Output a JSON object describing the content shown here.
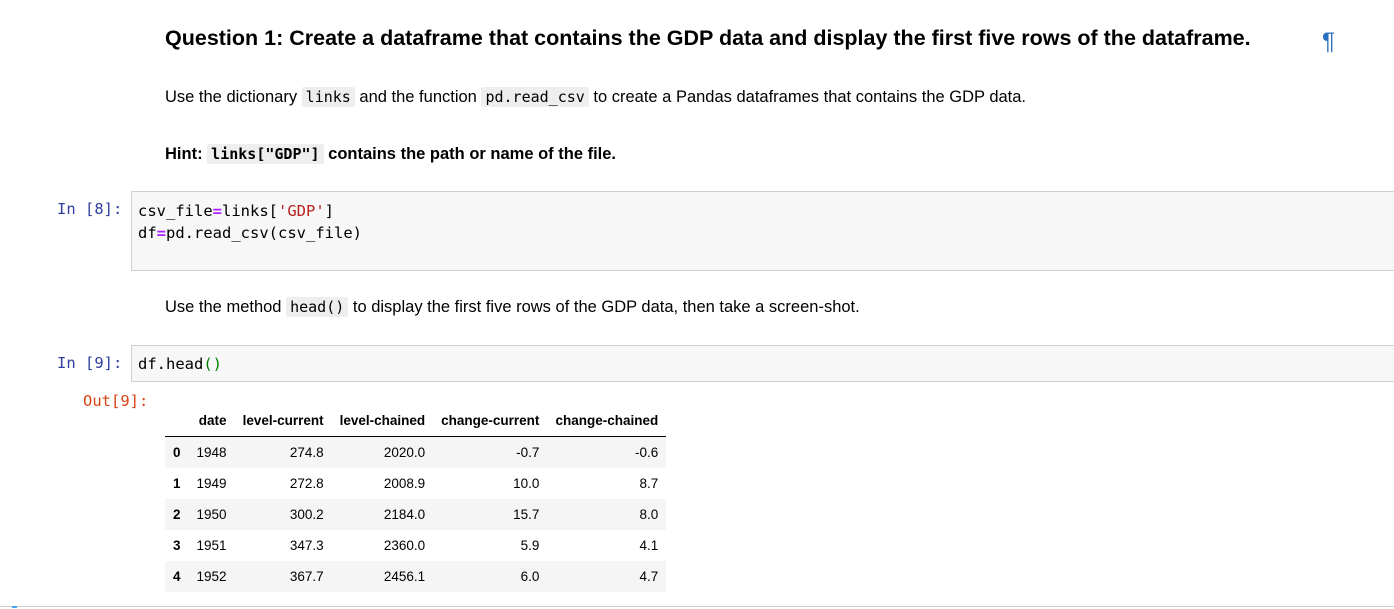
{
  "question": {
    "heading": "Question 1: Create a dataframe that contains the GDP data and display the first five rows of the dataframe.",
    "pilcrow": "¶",
    "instruction": {
      "prefix": "Use the dictionary",
      "code1": "links",
      "middle": "and the function",
      "code2": "pd.read_csv",
      "suffix": "to create a Pandas dataframes that contains the GDP data."
    },
    "hint": {
      "label": "Hint:",
      "code": "links[\"GDP\"]",
      "text": "contains the path or name of the file."
    }
  },
  "cell1": {
    "prompt": "In [8]:",
    "line1": {
      "a": "csv_file",
      "op": "=",
      "b": "links[",
      "str": "'GDP'",
      "c": "]"
    },
    "line2": {
      "a": "df",
      "op": "=",
      "b": "pd.read_csv(csv_file)"
    }
  },
  "instruction2": {
    "prefix": "Use the method",
    "code": "head()",
    "suffix": "to display the first five rows of the GDP data, then take a screen-shot."
  },
  "cell2": {
    "prompt": "In [9]:",
    "code_a": "df.head",
    "code_paren": "()",
    "out_prompt": "Out[9]:"
  },
  "dataframe": {
    "columns": [
      "",
      "date",
      "level-current",
      "level-chained",
      "change-current",
      "change-chained"
    ],
    "rows": [
      [
        "0",
        "1948",
        "274.8",
        "2020.0",
        "-0.7",
        "-0.6"
      ],
      [
        "1",
        "1949",
        "272.8",
        "2008.9",
        "10.0",
        "8.7"
      ],
      [
        "2",
        "1950",
        "300.2",
        "2184.0",
        "15.7",
        "8.0"
      ],
      [
        "3",
        "1951",
        "347.3",
        "2360.0",
        "5.9",
        "4.1"
      ],
      [
        "4",
        "1952",
        "367.7",
        "2456.1",
        "6.0",
        "4.7"
      ]
    ]
  }
}
